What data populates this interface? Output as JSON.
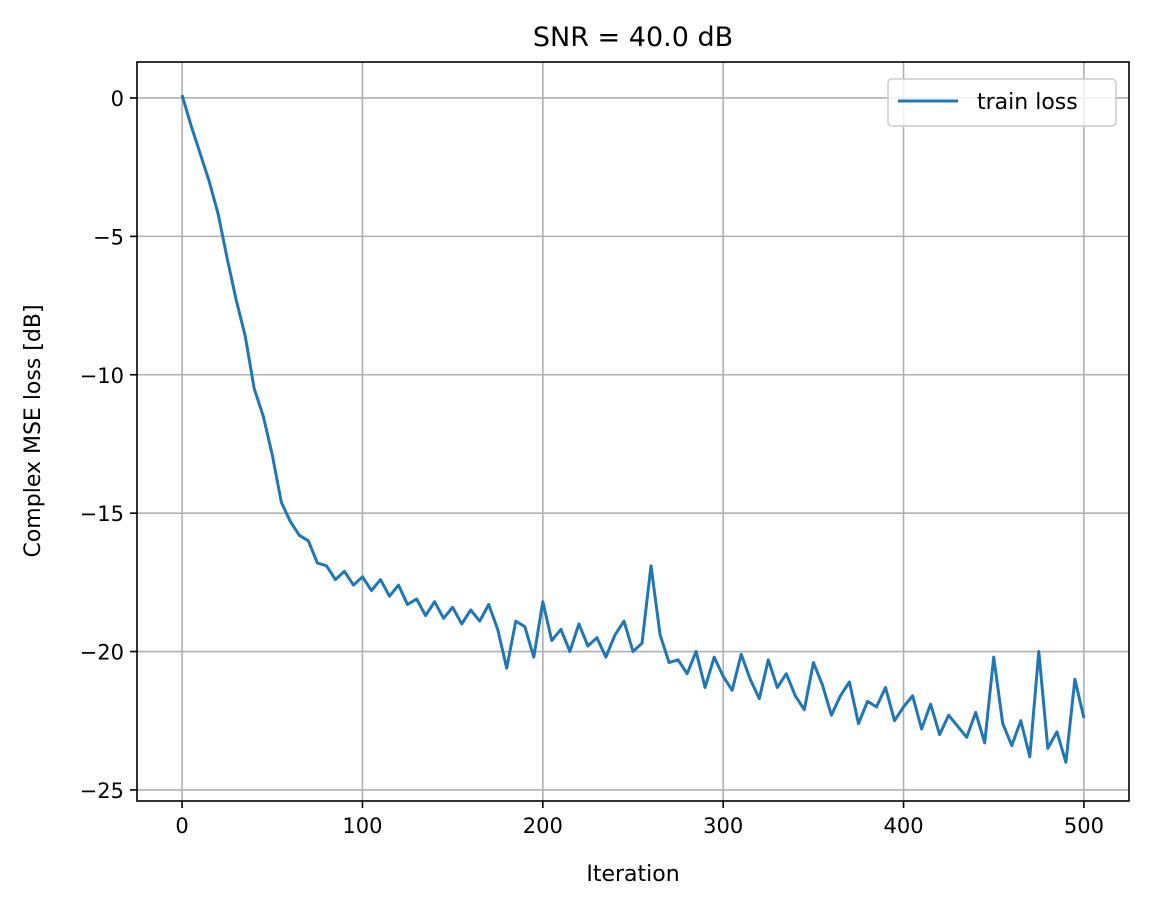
{
  "chart_data": {
    "type": "line",
    "title": "SNR = 40.0 dB",
    "xlabel": "Iteration",
    "ylabel": "Complex MSE loss [dB]",
    "xlim": [
      -25,
      525
    ],
    "ylim": [
      -25.4,
      1.3
    ],
    "xticks": [
      0,
      100,
      200,
      300,
      400,
      500
    ],
    "xtick_labels": [
      "0",
      "100",
      "200",
      "300",
      "400",
      "500"
    ],
    "yticks": [
      0,
      -5,
      -10,
      -15,
      -20,
      -25
    ],
    "ytick_labels": [
      "0",
      "−5",
      "−10",
      "−15",
      "−20",
      "−25"
    ],
    "grid": true,
    "legend": "top-right",
    "series": [
      {
        "name": "train loss",
        "color": "#1f77b4",
        "x": [
          0,
          5,
          10,
          15,
          20,
          25,
          30,
          35,
          40,
          45,
          50,
          55,
          60,
          65,
          70,
          75,
          80,
          85,
          90,
          95,
          100,
          105,
          110,
          115,
          120,
          125,
          130,
          135,
          140,
          145,
          150,
          155,
          160,
          165,
          170,
          175,
          180,
          185,
          190,
          195,
          200,
          205,
          210,
          215,
          220,
          225,
          230,
          235,
          240,
          245,
          250,
          255,
          260,
          265,
          270,
          275,
          280,
          285,
          290,
          295,
          300,
          305,
          310,
          315,
          320,
          325,
          330,
          335,
          340,
          345,
          350,
          355,
          360,
          365,
          370,
          375,
          380,
          385,
          390,
          395,
          400,
          405,
          410,
          415,
          420,
          425,
          430,
          435,
          440,
          445,
          450,
          455,
          460,
          465,
          470,
          475,
          480,
          485,
          490,
          495,
          500
        ],
        "y": [
          0.1,
          -1.0,
          -2.0,
          -3.0,
          -4.2,
          -5.8,
          -7.3,
          -8.6,
          -10.5,
          -11.5,
          -12.9,
          -14.6,
          -15.3,
          -15.8,
          -16.0,
          -16.8,
          -16.9,
          -17.4,
          -17.1,
          -17.6,
          -17.3,
          -17.8,
          -17.4,
          -18.0,
          -17.6,
          -18.3,
          -18.1,
          -18.7,
          -18.2,
          -18.8,
          -18.4,
          -19.0,
          -18.5,
          -18.9,
          -18.3,
          -19.2,
          -20.6,
          -18.9,
          -19.1,
          -20.2,
          -18.2,
          -19.6,
          -19.2,
          -20.0,
          -19.0,
          -19.8,
          -19.5,
          -20.2,
          -19.4,
          -18.9,
          -20.0,
          -19.7,
          -16.9,
          -19.4,
          -20.4,
          -20.3,
          -20.8,
          -20.0,
          -21.3,
          -20.2,
          -20.9,
          -21.4,
          -20.1,
          -21.0,
          -21.7,
          -20.3,
          -21.3,
          -20.8,
          -21.6,
          -22.1,
          -20.4,
          -21.2,
          -22.3,
          -21.6,
          -21.1,
          -22.6,
          -21.8,
          -22.0,
          -21.3,
          -22.5,
          -22.0,
          -21.6,
          -22.8,
          -21.9,
          -23.0,
          -22.3,
          -22.7,
          -23.1,
          -22.2,
          -23.3,
          -20.2,
          -22.6,
          -23.4,
          -22.5,
          -23.8,
          -20.0,
          -23.5,
          -22.9,
          -24.0,
          -21.0,
          -22.4
        ]
      }
    ]
  }
}
